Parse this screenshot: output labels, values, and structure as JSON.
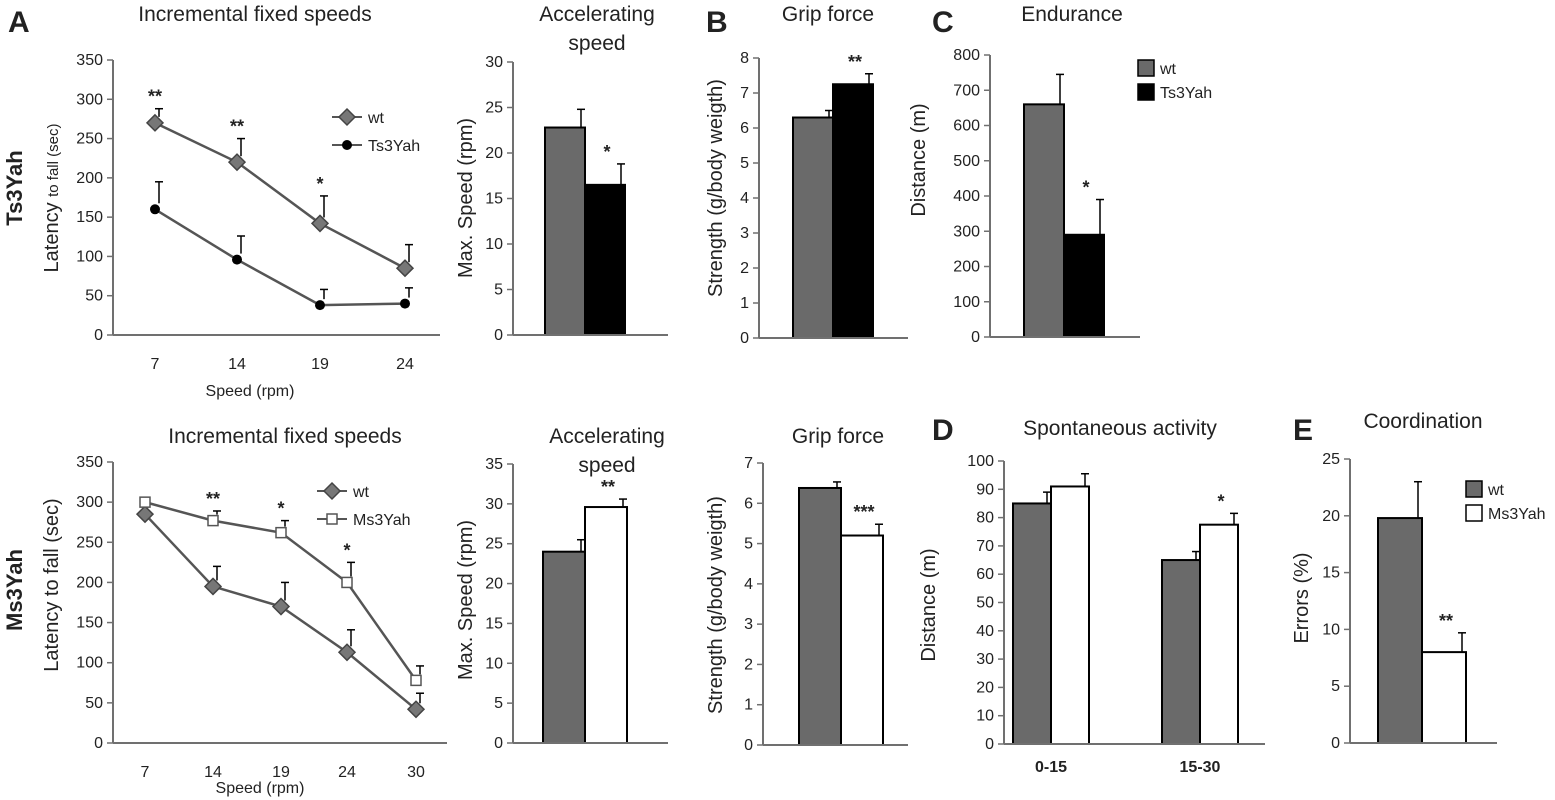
{
  "panel_letters": [
    "A",
    "B",
    "C",
    "D",
    "E"
  ],
  "row_labels": [
    "Ts3Yah",
    "Ms3Yah"
  ],
  "colors": {
    "wt": "#6a6a6a",
    "ts3yah": "#000000",
    "ms3yah": "#ffffff",
    "line": "#555555",
    "axis": "#707070"
  },
  "chart_data": [
    {
      "id": "ts-incremental",
      "type": "line",
      "title": "Incremental fixed speeds",
      "xlabel": "Speed (rpm)",
      "ylabel": "Latency to fall (sec)",
      "ylabel_main": "Latency ",
      "ylabel_small": "to fall (sec)",
      "categories": [
        "7",
        "14",
        "19",
        "24"
      ],
      "ylim": [
        0,
        350
      ],
      "yticks": [
        0,
        50,
        100,
        150,
        200,
        250,
        300,
        350
      ],
      "legend_position": "top-right",
      "series": [
        {
          "name": "wt",
          "marker": "diamond",
          "values": [
            270,
            220,
            142,
            85
          ],
          "errors": [
            18,
            30,
            35,
            30
          ]
        },
        {
          "name": "Ts3Yah",
          "marker": "circle",
          "values": [
            160,
            96,
            38,
            40
          ],
          "errors": [
            35,
            30,
            20,
            20
          ]
        }
      ],
      "annotations": [
        {
          "label": "**",
          "category": "7"
        },
        {
          "label": "**",
          "category": "14"
        },
        {
          "label": "*",
          "category": "19"
        }
      ]
    },
    {
      "id": "ts-accelerating",
      "type": "bar",
      "title": "Accelerating speed",
      "title_lines": [
        "Accelerating",
        "speed"
      ],
      "xlabel": "",
      "ylabel": "Max. Speed  (rpm)",
      "ylim": [
        0,
        30
      ],
      "yticks": [
        0,
        5,
        10,
        15,
        20,
        25,
        30
      ],
      "series": [
        {
          "name": "wt",
          "value": 22.8,
          "error": 2
        },
        {
          "name": "Ts3Yah",
          "value": 16.5,
          "error": 2.3
        }
      ],
      "annotations": [
        {
          "label": "*",
          "series": "Ts3Yah"
        }
      ]
    },
    {
      "id": "ts-grip",
      "type": "bar",
      "title": "Grip force",
      "xlabel": "",
      "ylabel": "Strength (g/body weigth)",
      "ylim": [
        0,
        8
      ],
      "yticks": [
        0,
        1,
        2,
        3,
        4,
        5,
        6,
        7,
        8
      ],
      "series": [
        {
          "name": "wt",
          "value": 6.3,
          "error": 0.2
        },
        {
          "name": "Ts3Yah",
          "value": 7.25,
          "error": 0.3
        }
      ],
      "annotations": [
        {
          "label": "**",
          "series": "Ts3Yah"
        }
      ]
    },
    {
      "id": "ts-endurance",
      "type": "bar",
      "title": "Endurance",
      "xlabel": "",
      "ylabel": "Distance  (m)",
      "ylim": [
        0,
        800
      ],
      "yticks": [
        0,
        100,
        200,
        300,
        400,
        500,
        600,
        700,
        800
      ],
      "legend_position": "top-right",
      "legend": [
        "wt",
        "Ts3Yah"
      ],
      "series": [
        {
          "name": "wt",
          "value": 660,
          "error": 85
        },
        {
          "name": "Ts3Yah",
          "value": 290,
          "error": 100
        }
      ],
      "annotations": [
        {
          "label": "*",
          "series": "Ts3Yah"
        }
      ]
    },
    {
      "id": "ms-incremental",
      "type": "line",
      "title": "Incremental fixed speeds",
      "xlabel": "Speed (rpm)",
      "ylabel": "Latency to fall (sec)",
      "categories": [
        "7",
        "14",
        "19",
        "24",
        "30"
      ],
      "ylim": [
        0,
        350
      ],
      "yticks": [
        0,
        50,
        100,
        150,
        200,
        250,
        300,
        350
      ],
      "legend_position": "top-right",
      "series": [
        {
          "name": "wt",
          "marker": "diamond",
          "values": [
            285,
            195,
            170,
            113,
            42
          ],
          "errors": [
            0,
            25,
            30,
            28,
            20
          ]
        },
        {
          "name": "Ms3Yah",
          "marker": "square",
          "values": [
            300,
            277,
            262,
            200,
            78
          ],
          "errors": [
            0,
            12,
            15,
            25,
            18
          ]
        }
      ],
      "annotations": [
        {
          "label": "**",
          "category": "14"
        },
        {
          "label": "*",
          "category": "19"
        },
        {
          "label": "*",
          "category": "24"
        }
      ]
    },
    {
      "id": "ms-accelerating",
      "type": "bar",
      "title": "Accelerating speed",
      "title_lines": [
        "Accelerating",
        "speed"
      ],
      "xlabel": "",
      "ylabel": "Max. Speed  (rpm)",
      "ylim": [
        0,
        35
      ],
      "yticks": [
        0,
        5,
        10,
        15,
        20,
        25,
        30,
        35
      ],
      "series": [
        {
          "name": "wt",
          "value": 24,
          "error": 1.5
        },
        {
          "name": "Ms3Yah",
          "value": 29.6,
          "error": 1
        }
      ],
      "annotations": [
        {
          "label": "**",
          "series": "Ms3Yah"
        }
      ]
    },
    {
      "id": "ms-grip",
      "type": "bar",
      "title": "Grip force",
      "xlabel": "",
      "ylabel": "Strength (g/body weigth)",
      "ylim": [
        0,
        7
      ],
      "yticks": [
        0,
        1,
        2,
        3,
        4,
        5,
        6,
        7
      ],
      "series": [
        {
          "name": "wt",
          "value": 6.38,
          "error": 0.15
        },
        {
          "name": "Ms3Yah",
          "value": 5.2,
          "error": 0.28
        }
      ],
      "annotations": [
        {
          "label": "***",
          "series": "Ms3Yah"
        }
      ]
    },
    {
      "id": "spontaneous",
      "type": "bar",
      "title": "Spontaneous activity",
      "xlabel": "",
      "ylabel": "Distance (m)",
      "categories": [
        "0-15",
        "15-30"
      ],
      "ylim": [
        0,
        100
      ],
      "yticks": [
        0,
        10,
        20,
        30,
        40,
        50,
        60,
        70,
        80,
        90,
        100
      ],
      "series": [
        {
          "name": "wt",
          "values": [
            85,
            65
          ],
          "errors": [
            4,
            3
          ]
        },
        {
          "name": "Ms3Yah",
          "values": [
            91,
            77.5
          ],
          "errors": [
            4.5,
            4
          ]
        }
      ],
      "annotations": [
        {
          "label": "*",
          "series": "Ms3Yah",
          "category": "15-30"
        }
      ]
    },
    {
      "id": "coordination",
      "type": "bar",
      "title": "Coordination",
      "xlabel": "",
      "ylabel": "Errors  (%)",
      "ylim": [
        0,
        25
      ],
      "yticks": [
        0,
        5,
        10,
        15,
        20,
        25
      ],
      "legend_position": "top-right",
      "legend": [
        "wt",
        "Ms3Yah"
      ],
      "series": [
        {
          "name": "wt",
          "value": 19.8,
          "error": 3.2
        },
        {
          "name": "Ms3Yah",
          "value": 8,
          "error": 1.7
        }
      ],
      "annotations": [
        {
          "label": "**",
          "series": "Ms3Yah"
        }
      ]
    }
  ]
}
